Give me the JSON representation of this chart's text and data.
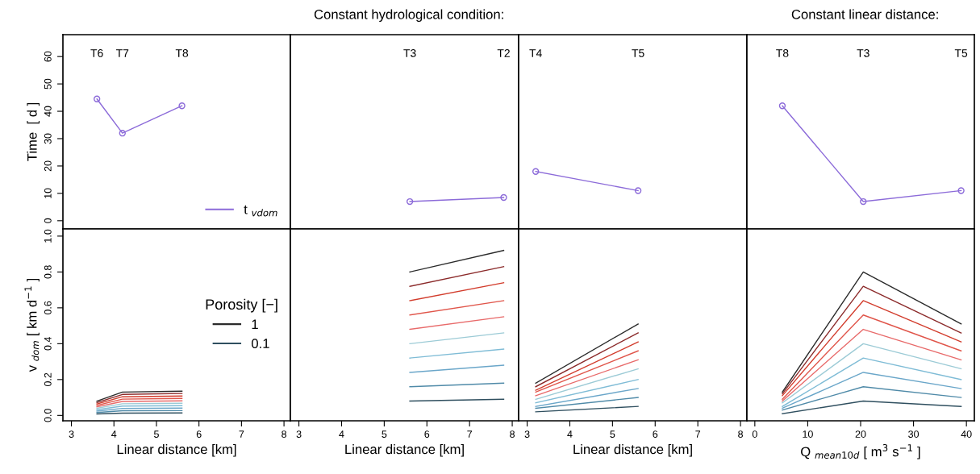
{
  "chart_data": [
    {
      "type": "line",
      "marker": "circle",
      "ylabel": "Time  [ d ]",
      "xlim": [
        2.8,
        8.15
      ],
      "ylim": [
        -3,
        68
      ],
      "yticks": [
        0,
        10,
        20,
        30,
        40,
        50,
        60
      ],
      "tick_labels": "y",
      "legend": "lower right",
      "x": [
        3.6,
        4.2,
        5.6
      ],
      "series": [
        {
          "name": "t $_{vdom}$",
          "color": "#8c6bd9",
          "values": [
            44.5,
            32,
            42
          ]
        }
      ],
      "annotations": [
        "T6",
        "T7",
        "T8"
      ]
    },
    {
      "type": "line",
      "marker": "circle",
      "title": "Constant hydrological condition:",
      "xlim": [
        2.8,
        8.15
      ],
      "ylim": [
        -3,
        68
      ],
      "tick_labels": false,
      "x": [
        5.6,
        7.8
      ],
      "series": [
        {
          "color": "#8c6bd9",
          "values": [
            7,
            8.5
          ]
        }
      ],
      "annotations": [
        "T3",
        "T2"
      ]
    },
    {
      "type": "line",
      "marker": "circle",
      "xlim": [
        2.8,
        8.15
      ],
      "ylim": [
        -3,
        68
      ],
      "tick_labels": false,
      "x": [
        3.2,
        5.6
      ],
      "series": [
        {
          "color": "#8c6bd9",
          "values": [
            18,
            11
          ]
        }
      ],
      "annotations": [
        "T4",
        "T5"
      ]
    },
    {
      "type": "line",
      "marker": "circle",
      "title": "Constant linear distance:",
      "xlim": [
        -1.5,
        41.5
      ],
      "ylim": [
        -3,
        68
      ],
      "tick_labels": false,
      "x": [
        5.2,
        20.5,
        39
      ],
      "series": [
        {
          "color": "#8c6bd9",
          "values": [
            42,
            7,
            11
          ]
        }
      ],
      "annotations": [
        "T8",
        "T3",
        "T5"
      ]
    },
    {
      "type": "line",
      "xlabel": "Linear distance [km]",
      "ylabel": "v $_{dom}$ [ km d$^{−1}$ ]",
      "legend_title": "Porosity [−]",
      "legend": "right",
      "xlim": [
        2.8,
        8.15
      ],
      "xticks": [
        3,
        4,
        5,
        6,
        7,
        8
      ],
      "ylim": [
        -0.03,
        1.04
      ],
      "yticks": [
        {
          "value": 0,
          "label": "0.0"
        },
        {
          "value": 0.2,
          "label": "0.2"
        },
        {
          "value": 0.4,
          "label": "0.4"
        },
        {
          "value": 0.6,
          "label": "0.6"
        },
        {
          "value": 0.8,
          "label": "0.8"
        },
        {
          "value": 1,
          "label": "1.0"
        }
      ],
      "x": [
        3.6,
        4.2,
        5.6
      ],
      "series": [
        {
          "name": "1",
          "color": "#2b2b2b",
          "values": [
            0.08,
            0.13,
            0.135
          ]
        },
        {
          "color": "#8b2a2a",
          "values": [
            0.072,
            0.117,
            0.122
          ]
        },
        {
          "color": "#d23c2c",
          "values": [
            0.064,
            0.104,
            0.108
          ]
        },
        {
          "color": "#e0554a",
          "values": [
            0.056,
            0.091,
            0.095
          ]
        },
        {
          "color": "#e86a6a",
          "values": [
            0.048,
            0.078,
            0.081
          ]
        },
        {
          "color": "#9ccbd6",
          "values": [
            0.04,
            0.065,
            0.068
          ]
        },
        {
          "color": "#7fbcd6",
          "values": [
            0.032,
            0.052,
            0.054
          ]
        },
        {
          "color": "#6aa6c9",
          "values": [
            0.024,
            0.039,
            0.041
          ]
        },
        {
          "color": "#4f8aa8",
          "values": [
            0.016,
            0.026,
            0.027
          ]
        },
        {
          "name": "0.1",
          "color": "#2f4f5f",
          "values": [
            0.008,
            0.013,
            0.014
          ]
        }
      ]
    },
    {
      "type": "line",
      "xlabel": "Linear distance [km]",
      "xlim": [
        2.8,
        8.15
      ],
      "xticks": [
        3,
        4,
        5,
        6,
        7,
        8
      ],
      "ylim": [
        -0.03,
        1.04
      ],
      "tick_labels": "x",
      "x": [
        5.6,
        7.8
      ],
      "series": [
        {
          "color": "#2b2b2b",
          "values": [
            0.8,
            0.92
          ]
        },
        {
          "color": "#8b2a2a",
          "values": [
            0.72,
            0.83
          ]
        },
        {
          "color": "#d23c2c",
          "values": [
            0.64,
            0.74
          ]
        },
        {
          "color": "#e0554a",
          "values": [
            0.56,
            0.64
          ]
        },
        {
          "color": "#e86a6a",
          "values": [
            0.48,
            0.55
          ]
        },
        {
          "color": "#9ccbd6",
          "values": [
            0.4,
            0.46
          ]
        },
        {
          "color": "#7fbcd6",
          "values": [
            0.32,
            0.37
          ]
        },
        {
          "color": "#6aa6c9",
          "values": [
            0.24,
            0.28
          ]
        },
        {
          "color": "#4f8aa8",
          "values": [
            0.16,
            0.18
          ]
        },
        {
          "color": "#2f4f5f",
          "values": [
            0.08,
            0.09
          ]
        }
      ]
    },
    {
      "type": "line",
      "xlabel": "Linear distance [km]",
      "xlim": [
        2.8,
        8.15
      ],
      "xticks": [
        3,
        4,
        5,
        6,
        7,
        8
      ],
      "ylim": [
        -0.03,
        1.04
      ],
      "tick_labels": "x",
      "x": [
        3.2,
        5.6
      ],
      "series": [
        {
          "color": "#2b2b2b",
          "values": [
            0.18,
            0.51
          ]
        },
        {
          "color": "#8b2a2a",
          "values": [
            0.16,
            0.46
          ]
        },
        {
          "color": "#d23c2c",
          "values": [
            0.14,
            0.41
          ]
        },
        {
          "color": "#e0554a",
          "values": [
            0.13,
            0.36
          ]
        },
        {
          "color": "#e86a6a",
          "values": [
            0.11,
            0.31
          ]
        },
        {
          "color": "#9ccbd6",
          "values": [
            0.09,
            0.26
          ]
        },
        {
          "color": "#7fbcd6",
          "values": [
            0.07,
            0.2
          ]
        },
        {
          "color": "#6aa6c9",
          "values": [
            0.05,
            0.15
          ]
        },
        {
          "color": "#4f8aa8",
          "values": [
            0.04,
            0.1
          ]
        },
        {
          "color": "#2f4f5f",
          "values": [
            0.02,
            0.05
          ]
        }
      ]
    },
    {
      "type": "line",
      "xlabel": "Q $_{mean10d}$ [ m$^{3}$ s$^{−1}$ ]",
      "xlim": [
        -1.5,
        41.5
      ],
      "xticks": [
        0,
        10,
        20,
        30,
        40
      ],
      "ylim": [
        -0.03,
        1.04
      ],
      "tick_labels": "x",
      "x": [
        5.2,
        20.5,
        39
      ],
      "series": [
        {
          "color": "#2b2b2b",
          "values": [
            0.13,
            0.8,
            0.51
          ]
        },
        {
          "color": "#8b2a2a",
          "values": [
            0.12,
            0.72,
            0.46
          ]
        },
        {
          "color": "#d23c2c",
          "values": [
            0.11,
            0.64,
            0.41
          ]
        },
        {
          "color": "#e0554a",
          "values": [
            0.09,
            0.56,
            0.36
          ]
        },
        {
          "color": "#e86a6a",
          "values": [
            0.08,
            0.48,
            0.31
          ]
        },
        {
          "color": "#9ccbd6",
          "values": [
            0.07,
            0.4,
            0.26
          ]
        },
        {
          "color": "#7fbcd6",
          "values": [
            0.05,
            0.32,
            0.2
          ]
        },
        {
          "color": "#6aa6c9",
          "values": [
            0.04,
            0.24,
            0.15
          ]
        },
        {
          "color": "#4f8aa8",
          "values": [
            0.03,
            0.16,
            0.1
          ]
        },
        {
          "color": "#2f4f5f",
          "values": [
            0.01,
            0.08,
            0.05
          ]
        }
      ]
    }
  ]
}
